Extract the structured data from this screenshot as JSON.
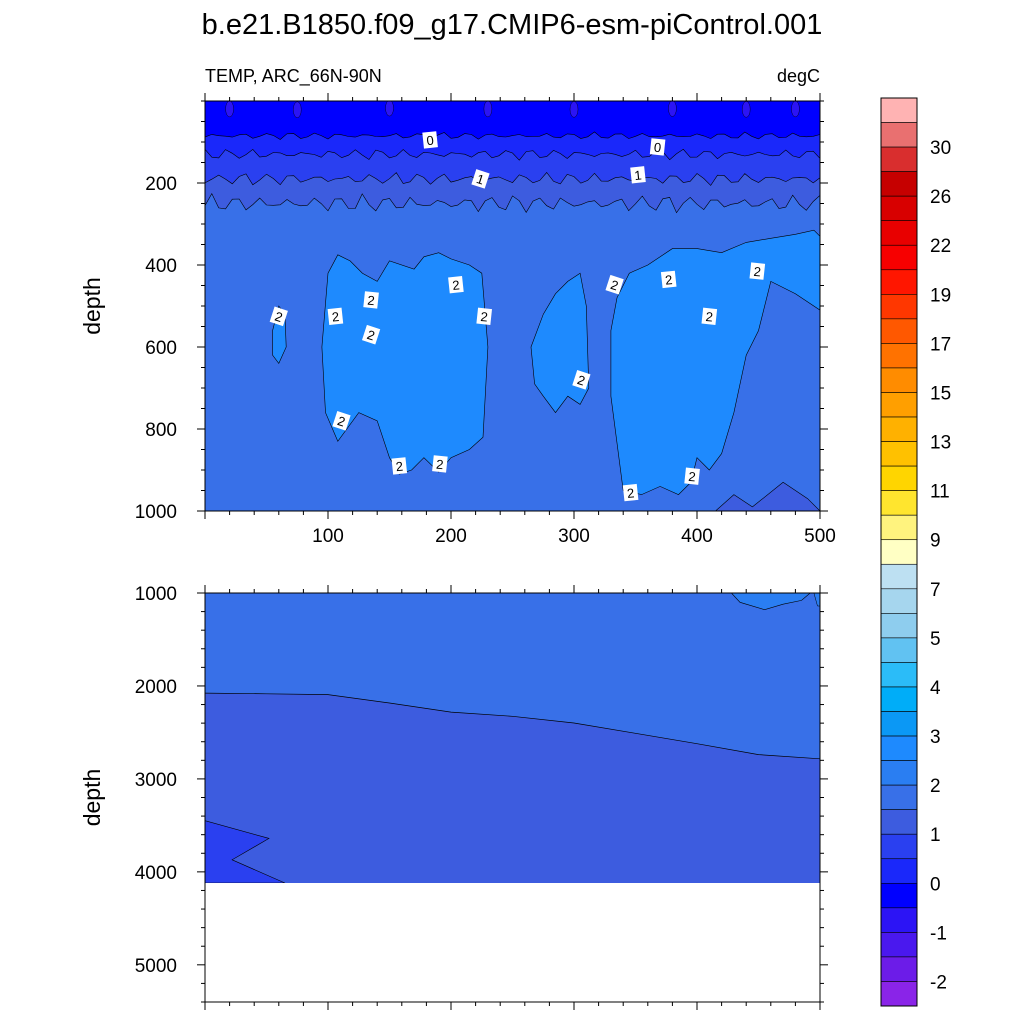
{
  "chart_data": {
    "type": "contour",
    "title": "b.e21.B1850.f09_g17.CMIP6-esm-piControl.001",
    "variable_label": "TEMP, ARC_66N-90N",
    "units_label": "degC",
    "ylabel": "depth",
    "x_ticks": [
      "100",
      "200",
      "300",
      "400",
      "500"
    ],
    "xlim": [
      0,
      500
    ],
    "panels": [
      {
        "name": "upper",
        "ylim": [
          0,
          1000
        ],
        "y_ticks": [
          "200",
          "400",
          "600",
          "800",
          "1000"
        ],
        "contour_labels": [
          {
            "text": "0",
            "x": 183,
            "y": 95
          },
          {
            "text": "0",
            "x": 368,
            "y": 112
          },
          {
            "text": "1",
            "x": 224,
            "y": 190
          },
          {
            "text": "1",
            "x": 352,
            "y": 180
          },
          {
            "text": "2",
            "x": 449,
            "y": 415
          },
          {
            "text": "2",
            "x": 60,
            "y": 525
          },
          {
            "text": "2",
            "x": 106,
            "y": 525
          },
          {
            "text": "2",
            "x": 135,
            "y": 485
          },
          {
            "text": "2",
            "x": 135,
            "y": 570
          },
          {
            "text": "2",
            "x": 204,
            "y": 448
          },
          {
            "text": "2",
            "x": 227,
            "y": 525
          },
          {
            "text": "2",
            "x": 111,
            "y": 780
          },
          {
            "text": "2",
            "x": 158,
            "y": 890
          },
          {
            "text": "2",
            "x": 191,
            "y": 885
          },
          {
            "text": "2",
            "x": 333,
            "y": 448
          },
          {
            "text": "2",
            "x": 377,
            "y": 435
          },
          {
            "text": "2",
            "x": 410,
            "y": 525
          },
          {
            "text": "2",
            "x": 306,
            "y": 680
          },
          {
            "text": "2",
            "x": 346,
            "y": 955
          },
          {
            "text": "2",
            "x": 396,
            "y": 915
          }
        ]
      },
      {
        "name": "lower",
        "ylim": [
          1000,
          5400
        ],
        "y_ticks": [
          "1000",
          "2000",
          "3000",
          "4000",
          "5000"
        ],
        "bottom_depth": 4120,
        "contour_1C_depth": {
          "x": [
            0,
            50,
            100,
            150,
            200,
            250,
            300,
            350,
            400,
            450,
            500
          ],
          "y": [
            2060,
            2080,
            2110,
            2180,
            2270,
            2330,
            2410,
            2500,
            2620,
            2740,
            2790
          ]
        }
      }
    ],
    "colorbar": {
      "labels": [
        "30",
        "26",
        "22",
        "19",
        "17",
        "15",
        "13",
        "11",
        "9",
        "7",
        "5",
        "4",
        "3",
        "2",
        "1",
        "0",
        "-1",
        "-2"
      ],
      "colors": [
        "#ffb3b3",
        "#e97070",
        "#d92e2e",
        "#c60000",
        "#d80000",
        "#e80000",
        "#f70000",
        "#ff1600",
        "#ff3700",
        "#ff5800",
        "#ff7200",
        "#ff8c00",
        "#ff9f00",
        "#ffb100",
        "#ffc100",
        "#ffd500",
        "#ffe52e",
        "#fff37e",
        "#ffffc4",
        "#bde0f2",
        "#a6d6ee",
        "#8ecdee",
        "#61c2f2",
        "#2bbcf8",
        "#00adf8",
        "#0b98f5",
        "#1e8afe",
        "#2a7ef2",
        "#3870e8",
        "#3d5cdf",
        "#2a40f0",
        "#1a28fa",
        "#0000ff",
        "#2c14f5",
        "#4a18ee",
        "#6c1ce8",
        "#8a24e8"
      ]
    },
    "fill_colors": {
      "below_0": "#0000ff",
      "c0_05": "#1a28fa",
      "c05_1": "#2a40f0",
      "c1_15": "#3d5cdf",
      "c15_2": "#3870e8",
      "c2_25": "#2a7ef2",
      "c25_3": "#1e8afe"
    }
  }
}
